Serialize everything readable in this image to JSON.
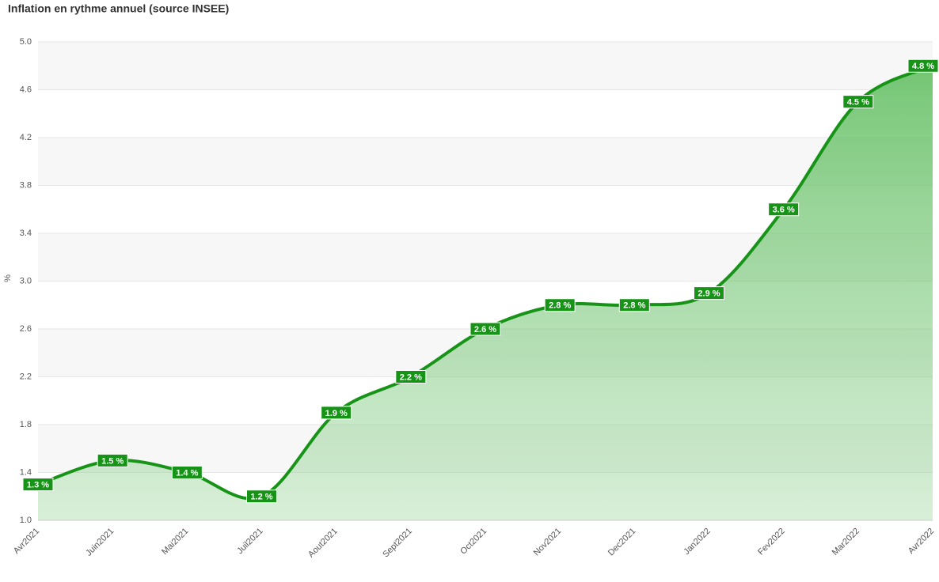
{
  "chart_data": {
    "type": "area",
    "title": "Inflation en rythme annuel (source INSEE)",
    "y_label": "%",
    "categories": [
      "Avr2021",
      "Juin2021",
      "Mai2021",
      "Juil2021",
      "Aout2021",
      "Sept2021",
      "Oct2021",
      "Nov2021",
      "Dec2021",
      "Jan2022",
      "Fev2022",
      "Mar2022",
      "Avr2022"
    ],
    "values": [
      1.3,
      1.5,
      1.4,
      1.2,
      1.9,
      2.2,
      2.6,
      2.8,
      2.8,
      2.9,
      3.6,
      4.5,
      4.8
    ],
    "value_labels": [
      "1.3 %",
      "1.5 %",
      "1.4 %",
      "1.2 %",
      "1.9 %",
      "2.2 %",
      "2.6 %",
      "2.8 %",
      "2.8 %",
      "2.9 %",
      "3.6 %",
      "4.5 %",
      "4.8 %"
    ],
    "color": "#179417",
    "ylim": [
      1.0,
      5.0
    ],
    "yticks": [
      {
        "value": 1.0,
        "label": "1.0"
      },
      1.4,
      1.8,
      2.2,
      2.6,
      {
        "value": 3.0,
        "label": "3.0"
      },
      3.4,
      3.8,
      4.2,
      4.6,
      {
        "value": 5.0,
        "label": "5.0"
      }
    ],
    "grid": true
  }
}
